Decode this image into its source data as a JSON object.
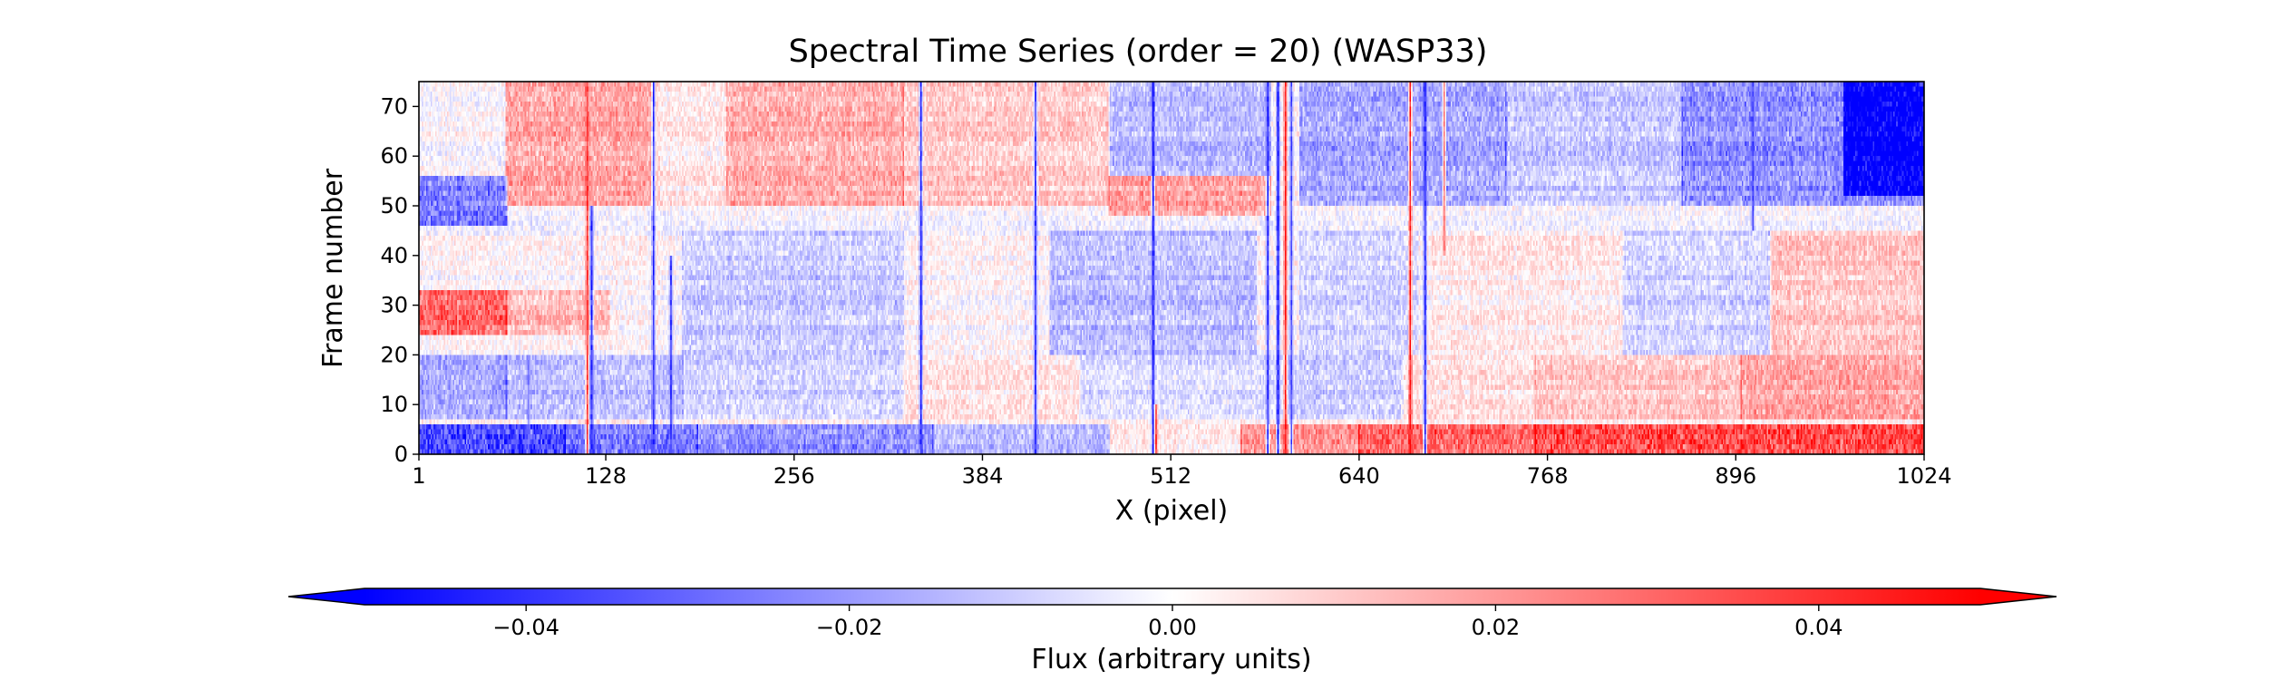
{
  "chart_data": {
    "type": "heatmap",
    "title": "Spectral Time Series (order = 20) (WASP33)",
    "xlabel": "X (pixel)",
    "ylabel": "Frame number",
    "xlim": [
      1,
      1024
    ],
    "ylim": [
      0,
      75
    ],
    "x_ticks": [
      "1",
      "128",
      "256",
      "384",
      "512",
      "640",
      "768",
      "896",
      "1024"
    ],
    "x_tick_values": [
      1,
      128,
      256,
      384,
      512,
      640,
      768,
      896,
      1024
    ],
    "y_ticks": [
      "0",
      "10",
      "20",
      "30",
      "40",
      "50",
      "60",
      "70"
    ],
    "y_tick_values": [
      0,
      10,
      20,
      30,
      40,
      50,
      60,
      70
    ],
    "grid": false,
    "colormap": "bwr",
    "colors": {
      "low": "#0000ff",
      "mid": "#ffffff",
      "high": "#ff0000"
    },
    "colorbar": {
      "label": "Flux (arbitrary units)",
      "range": [
        -0.05,
        0.05
      ],
      "extend": "both",
      "orientation": "horizontal",
      "placement": "bottom",
      "ticks": [
        "−0.04",
        "−0.02",
        "0.00",
        "0.02",
        "0.04"
      ],
      "tick_values": [
        -0.04,
        -0.02,
        0.0,
        0.02,
        0.04
      ]
    },
    "dimensions": {
      "frames": 75,
      "pixels": 1024
    },
    "columns": [
      {
        "x": 75,
        "v": -0.03,
        "y_from": 0,
        "y_to": 20
      },
      {
        "x": 115,
        "v": 0.045,
        "y_from": 0,
        "y_to": 75
      },
      {
        "x": 118,
        "v": -0.045,
        "y_from": 0,
        "y_to": 50
      },
      {
        "x": 160,
        "v": -0.045,
        "y_from": 0,
        "y_to": 75
      },
      {
        "x": 172,
        "v": -0.04,
        "y_from": 0,
        "y_to": 40
      },
      {
        "x": 342,
        "v": -0.05,
        "y_from": 0,
        "y_to": 75
      },
      {
        "x": 420,
        "v": -0.04,
        "y_from": 0,
        "y_to": 75
      },
      {
        "x": 500,
        "v": -0.05,
        "y_from": 0,
        "y_to": 75
      },
      {
        "x": 502,
        "v": 0.04,
        "y_from": 0,
        "y_to": 10
      },
      {
        "x": 578,
        "v": -0.05,
        "y_from": 0,
        "y_to": 75
      },
      {
        "x": 585,
        "v": -0.05,
        "y_from": 0,
        "y_to": 75
      },
      {
        "x": 590,
        "v": 0.05,
        "y_from": 0,
        "y_to": 75
      },
      {
        "x": 594,
        "v": -0.04,
        "y_from": 0,
        "y_to": 75
      },
      {
        "x": 675,
        "v": 0.05,
        "y_from": 0,
        "y_to": 75
      },
      {
        "x": 685,
        "v": -0.05,
        "y_from": 0,
        "y_to": 75
      },
      {
        "x": 698,
        "v": 0.03,
        "y_from": 40,
        "y_to": 75
      },
      {
        "x": 908,
        "v": -0.04,
        "y_from": 45,
        "y_to": 75
      }
    ],
    "blobs": [
      {
        "x": [
          1,
          100
        ],
        "y": [
          0,
          6
        ],
        "v": -0.04
      },
      {
        "x": [
          100,
          190
        ],
        "y": [
          0,
          6
        ],
        "v": -0.03
      },
      {
        "x": [
          190,
          350
        ],
        "y": [
          0,
          6
        ],
        "v": -0.025
      },
      {
        "x": [
          350,
          470
        ],
        "y": [
          0,
          6
        ],
        "v": -0.015
      },
      {
        "x": [
          470,
          560
        ],
        "y": [
          0,
          6
        ],
        "v": 0.005
      },
      {
        "x": [
          560,
          640
        ],
        "y": [
          0,
          6
        ],
        "v": 0.025
      },
      {
        "x": [
          640,
          760
        ],
        "y": [
          0,
          6
        ],
        "v": 0.035
      },
      {
        "x": [
          760,
          1024
        ],
        "y": [
          0,
          6
        ],
        "v": 0.042
      },
      {
        "x": [
          1,
          60
        ],
        "y": [
          24,
          33
        ],
        "v": 0.035
      },
      {
        "x": [
          60,
          130
        ],
        "y": [
          24,
          33
        ],
        "v": 0.015
      },
      {
        "x": [
          1,
          60
        ],
        "y": [
          7,
          20
        ],
        "v": -0.02
      },
      {
        "x": [
          60,
          180
        ],
        "y": [
          7,
          20
        ],
        "v": -0.015
      },
      {
        "x": [
          180,
          330
        ],
        "y": [
          7,
          20
        ],
        "v": -0.01
      },
      {
        "x": [
          330,
          450
        ],
        "y": [
          7,
          20
        ],
        "v": 0.005
      },
      {
        "x": [
          450,
          590
        ],
        "y": [
          7,
          20
        ],
        "v": -0.008
      },
      {
        "x": [
          590,
          670
        ],
        "y": [
          7,
          20
        ],
        "v": -0.012
      },
      {
        "x": [
          670,
          760
        ],
        "y": [
          7,
          20
        ],
        "v": 0.006
      },
      {
        "x": [
          760,
          900
        ],
        "y": [
          7,
          20
        ],
        "v": 0.012
      },
      {
        "x": [
          900,
          1024
        ],
        "y": [
          7,
          20
        ],
        "v": 0.02
      },
      {
        "x": [
          920,
          1024
        ],
        "y": [
          20,
          45
        ],
        "v": 0.012
      },
      {
        "x": [
          180,
          330
        ],
        "y": [
          20,
          45
        ],
        "v": -0.012
      },
      {
        "x": [
          430,
          570
        ],
        "y": [
          20,
          45
        ],
        "v": -0.015
      },
      {
        "x": [
          600,
          680
        ],
        "y": [
          20,
          45
        ],
        "v": -0.01
      },
      {
        "x": [
          690,
          820
        ],
        "y": [
          20,
          45
        ],
        "v": 0.004
      },
      {
        "x": [
          820,
          920
        ],
        "y": [
          20,
          45
        ],
        "v": -0.01
      },
      {
        "x": [
          1,
          60
        ],
        "y": [
          46,
          56
        ],
        "v": -0.03
      },
      {
        "x": [
          60,
          160
        ],
        "y": [
          50,
          75
        ],
        "v": 0.02
      },
      {
        "x": [
          160,
          210
        ],
        "y": [
          50,
          75
        ],
        "v": 0.005
      },
      {
        "x": [
          210,
          330
        ],
        "y": [
          50,
          75
        ],
        "v": 0.018
      },
      {
        "x": [
          330,
          470
        ],
        "y": [
          50,
          75
        ],
        "v": 0.012
      },
      {
        "x": [
          470,
          580
        ],
        "y": [
          48,
          56
        ],
        "v": 0.02
      },
      {
        "x": [
          470,
          580
        ],
        "y": [
          56,
          75
        ],
        "v": -0.015
      },
      {
        "x": [
          600,
          740
        ],
        "y": [
          50,
          75
        ],
        "v": -0.02
      },
      {
        "x": [
          740,
          860
        ],
        "y": [
          50,
          75
        ],
        "v": -0.012
      },
      {
        "x": [
          860,
          1024
        ],
        "y": [
          50,
          75
        ],
        "v": -0.025
      },
      {
        "x": [
          970,
          1024
        ],
        "y": [
          52,
          75
        ],
        "v": -0.04
      }
    ]
  }
}
